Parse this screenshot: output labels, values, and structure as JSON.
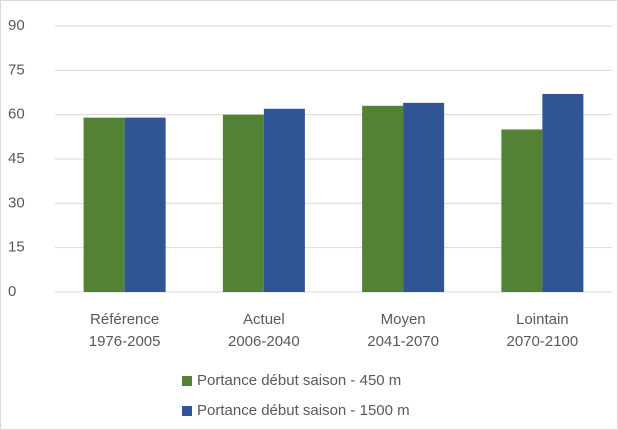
{
  "chart_data": {
    "type": "bar",
    "categories": [
      [
        "Référence",
        "1976-2005"
      ],
      [
        "Actuel",
        "2006-2040"
      ],
      [
        "Moyen",
        "2041-2070"
      ],
      [
        "Lointain",
        "2070-2100"
      ]
    ],
    "series": [
      {
        "name": "Portance début saison - 450 m",
        "color": "#548235",
        "values": [
          59,
          60,
          63,
          55
        ]
      },
      {
        "name": "Portance début saison - 1500 m",
        "color": "#2f5597",
        "values": [
          59,
          62,
          64,
          67
        ]
      }
    ],
    "ylim": [
      0,
      90
    ],
    "yticks": [
      0,
      15,
      30,
      45,
      60,
      75,
      90
    ],
    "grid": true,
    "legend": "bottom"
  }
}
